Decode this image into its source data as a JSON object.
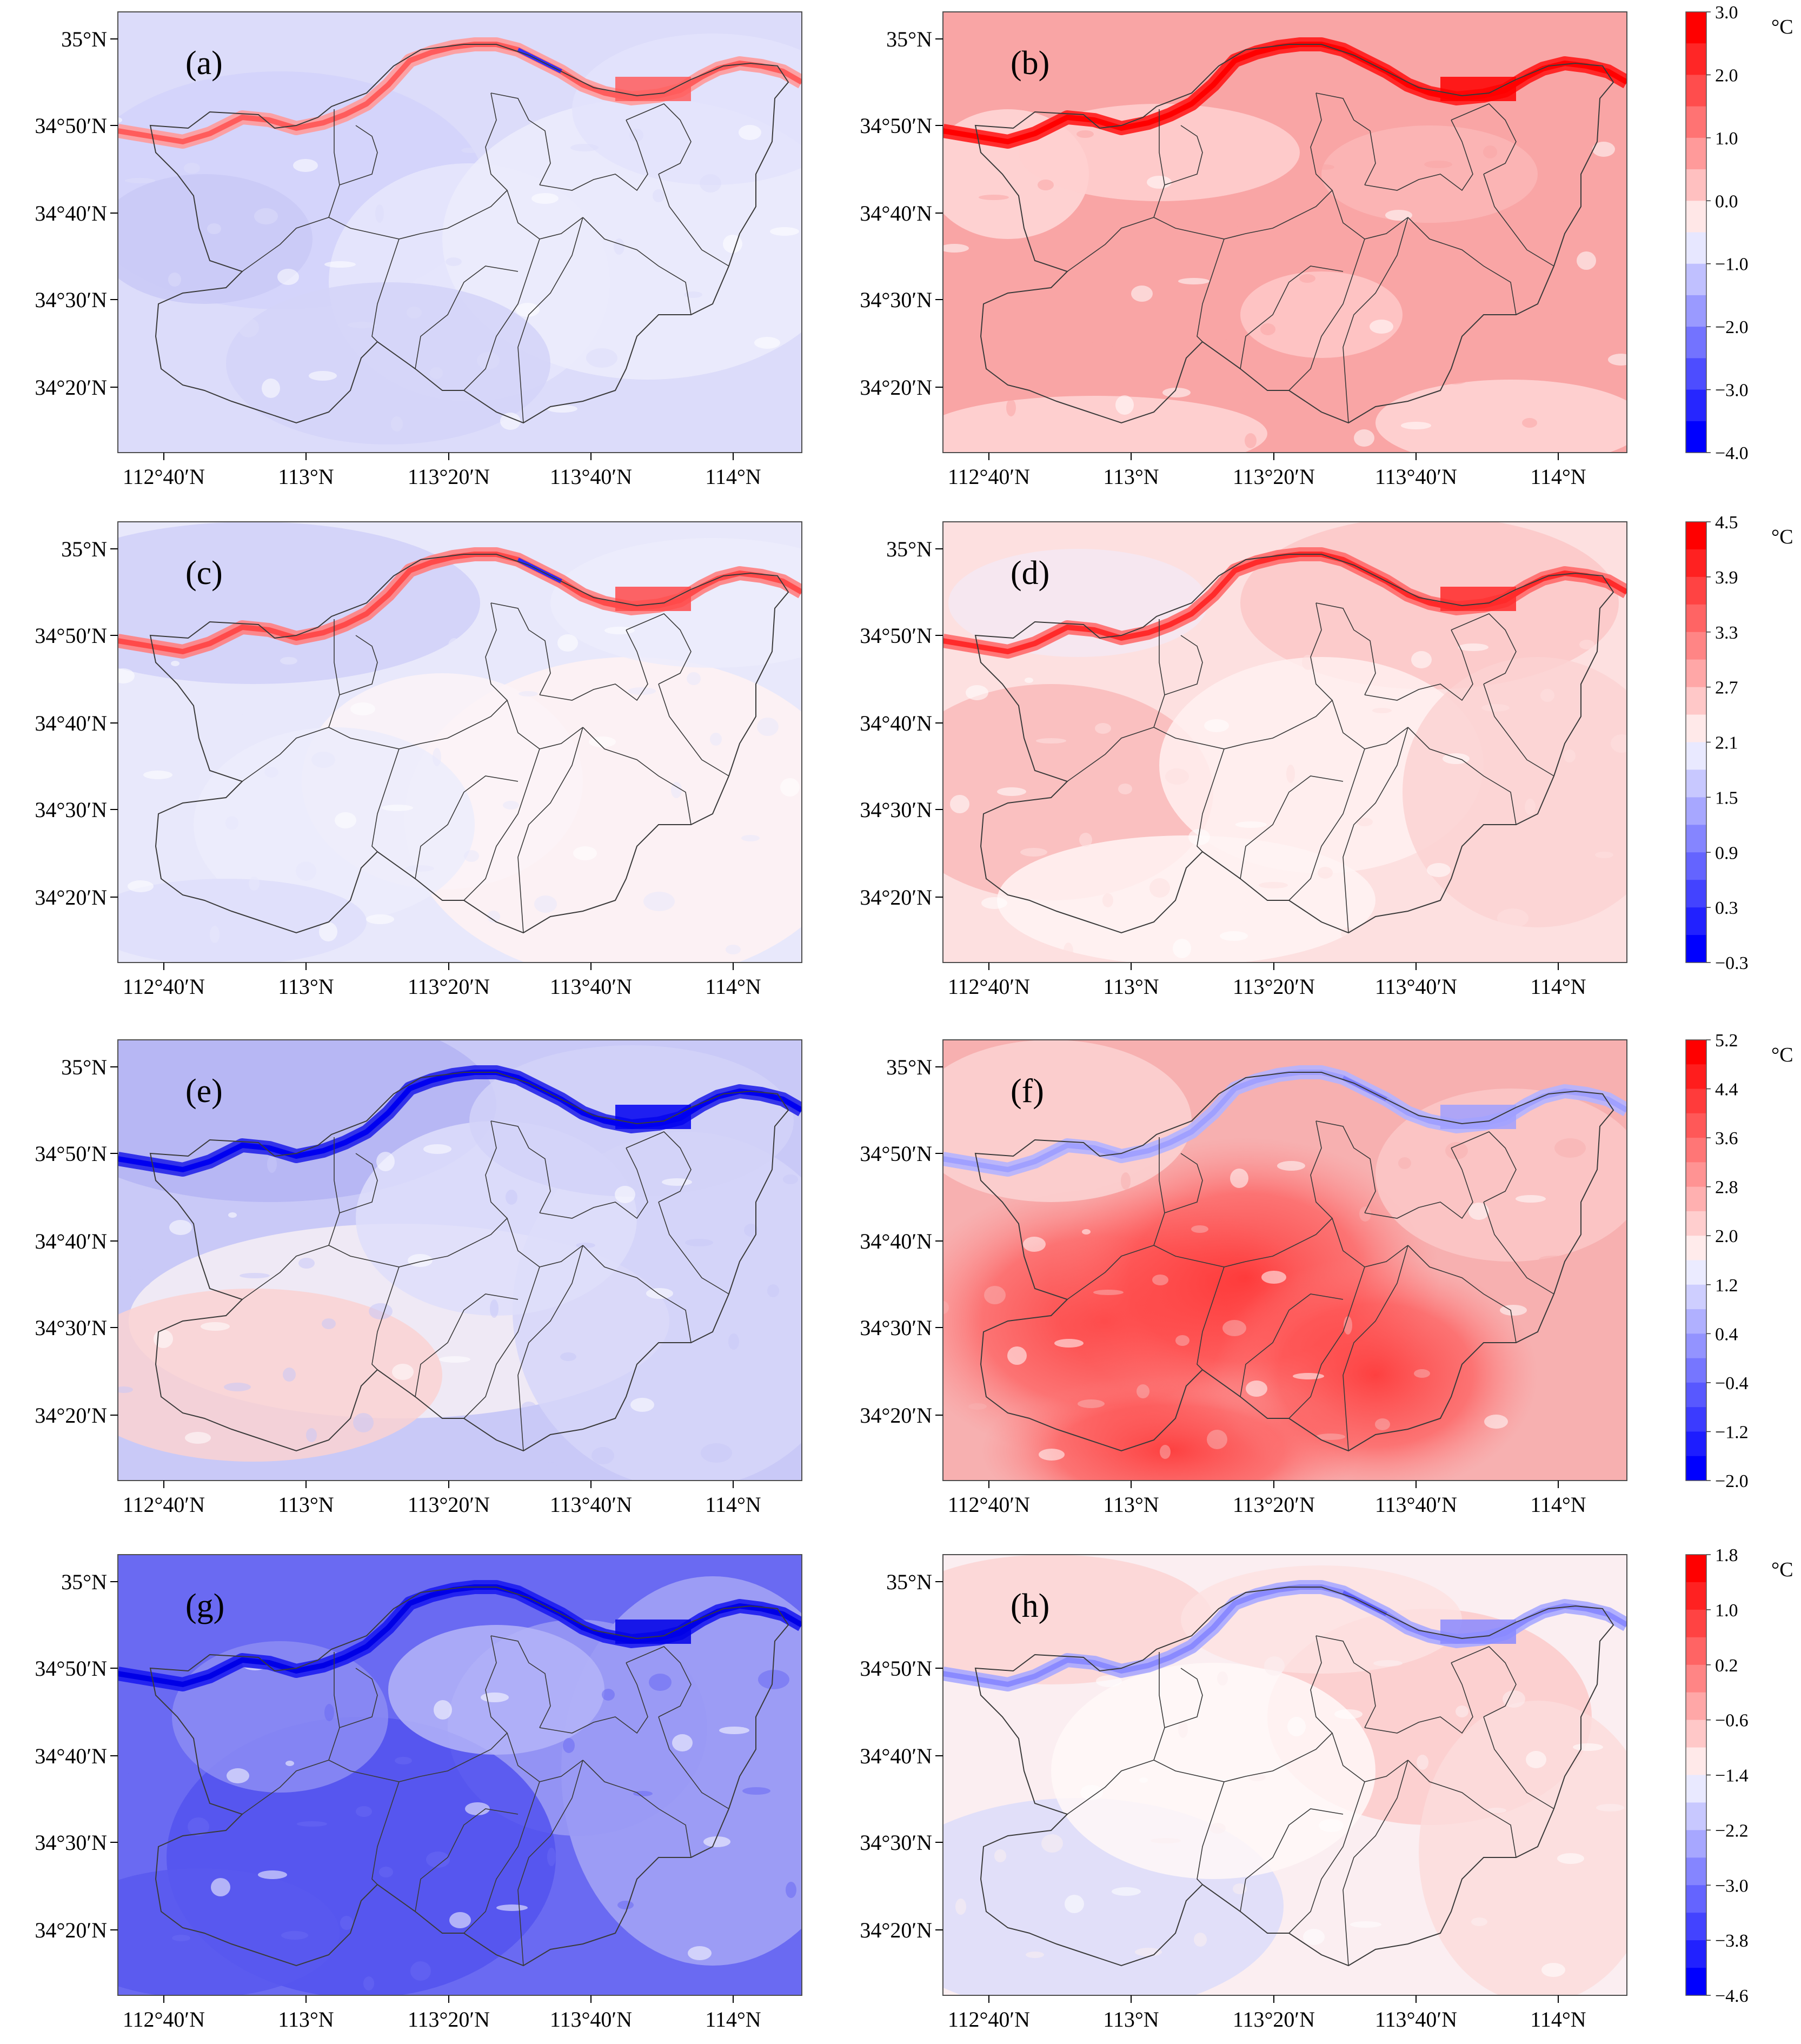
{
  "figure": {
    "axis": {
      "lat_labels": [
        "35°N",
        "34°50′N",
        "34°40′N",
        "34°30′N",
        "34°20′N"
      ],
      "lon_labels": [
        "112°40′N",
        "113°N",
        "113°20′N",
        "113°40′N",
        "114°N"
      ]
    },
    "panels": [
      {
        "label": "(a)",
        "scheme": "cool"
      },
      {
        "label": "(b)",
        "scheme": "warm"
      },
      {
        "label": "(c)",
        "scheme": "mixed"
      },
      {
        "label": "(d)",
        "scheme": "pinkish"
      },
      {
        "label": "(e)",
        "scheme": "blue_mix"
      },
      {
        "label": "(f)",
        "scheme": "hot"
      },
      {
        "label": "(g)",
        "scheme": "deep_blue"
      },
      {
        "label": "(h)",
        "scheme": "pale_mix"
      }
    ],
    "colorbars": [
      {
        "unit": "°C",
        "ticks": [
          "3.0",
          "2.0",
          "1.0",
          "0.0",
          "−1.0",
          "−2.0",
          "−3.0",
          "−4.0"
        ]
      },
      {
        "unit": "°C",
        "ticks": [
          "4.5",
          "3.9",
          "3.3",
          "2.7",
          "2.1",
          "1.5",
          "0.9",
          "0.3",
          "−0.3"
        ]
      },
      {
        "unit": "°C",
        "ticks": [
          "5.2",
          "4.4",
          "3.6",
          "2.8",
          "2.0",
          "1.2",
          "0.4",
          "−0.4",
          "−1.2",
          "−2.0"
        ]
      },
      {
        "unit": "°C",
        "ticks": [
          "1.8",
          "1.0",
          "0.2",
          "−0.6",
          "−1.4",
          "−2.2",
          "−3.0",
          "−3.8",
          "−4.6"
        ]
      }
    ],
    "colors": {
      "red": "#ff0000",
      "blue": "#0000ff",
      "frame": "#4d4d4d",
      "boundary": "#3a3a3a"
    }
  }
}
